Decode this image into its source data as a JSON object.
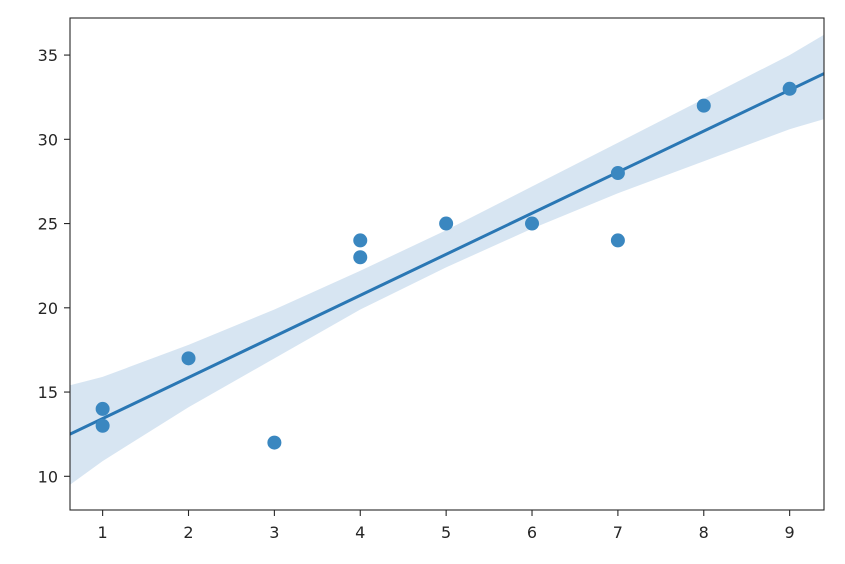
{
  "chart_data": {
    "type": "scatter",
    "title": "",
    "xlabel": "",
    "ylabel": "",
    "xlim": [
      0.62,
      9.4
    ],
    "ylim": [
      8.0,
      37.2
    ],
    "x_ticks": [
      1,
      2,
      3,
      4,
      5,
      6,
      7,
      8,
      9
    ],
    "y_ticks": [
      10,
      15,
      20,
      25,
      30,
      35
    ],
    "grid": false,
    "legend": "none",
    "points": [
      {
        "x": 1,
        "y": 14
      },
      {
        "x": 1,
        "y": 13
      },
      {
        "x": 2,
        "y": 17
      },
      {
        "x": 3,
        "y": 12
      },
      {
        "x": 4,
        "y": 24
      },
      {
        "x": 4,
        "y": 23
      },
      {
        "x": 5,
        "y": 25
      },
      {
        "x": 6,
        "y": 25
      },
      {
        "x": 7,
        "y": 28
      },
      {
        "x": 7,
        "y": 24
      },
      {
        "x": 8,
        "y": 32
      },
      {
        "x": 9,
        "y": 33
      }
    ],
    "regression_line": [
      {
        "x": 0.62,
        "y": 12.5
      },
      {
        "x": 9.4,
        "y": 33.9
      }
    ],
    "confidence_band": [
      {
        "x": 0.62,
        "upper": 15.4,
        "lower": 9.5
      },
      {
        "x": 1.0,
        "upper": 15.9,
        "lower": 10.9
      },
      {
        "x": 2.0,
        "upper": 17.8,
        "lower": 14.1
      },
      {
        "x": 3.0,
        "upper": 19.9,
        "lower": 17.0
      },
      {
        "x": 4.0,
        "upper": 22.2,
        "lower": 19.9
      },
      {
        "x": 5.0,
        "upper": 24.6,
        "lower": 22.4
      },
      {
        "x": 6.0,
        "upper": 27.2,
        "lower": 24.7
      },
      {
        "x": 7.0,
        "upper": 29.8,
        "lower": 26.8
      },
      {
        "x": 8.0,
        "upper": 32.4,
        "lower": 28.7
      },
      {
        "x": 9.0,
        "upper": 35.0,
        "lower": 30.6
      },
      {
        "x": 9.4,
        "upper": 36.2,
        "lower": 31.2
      }
    ],
    "colors": {
      "point": "#3a87c0",
      "line": "#2a77b4",
      "band": "#c9dcee",
      "axis": "#262626",
      "background": "#ffffff"
    }
  }
}
